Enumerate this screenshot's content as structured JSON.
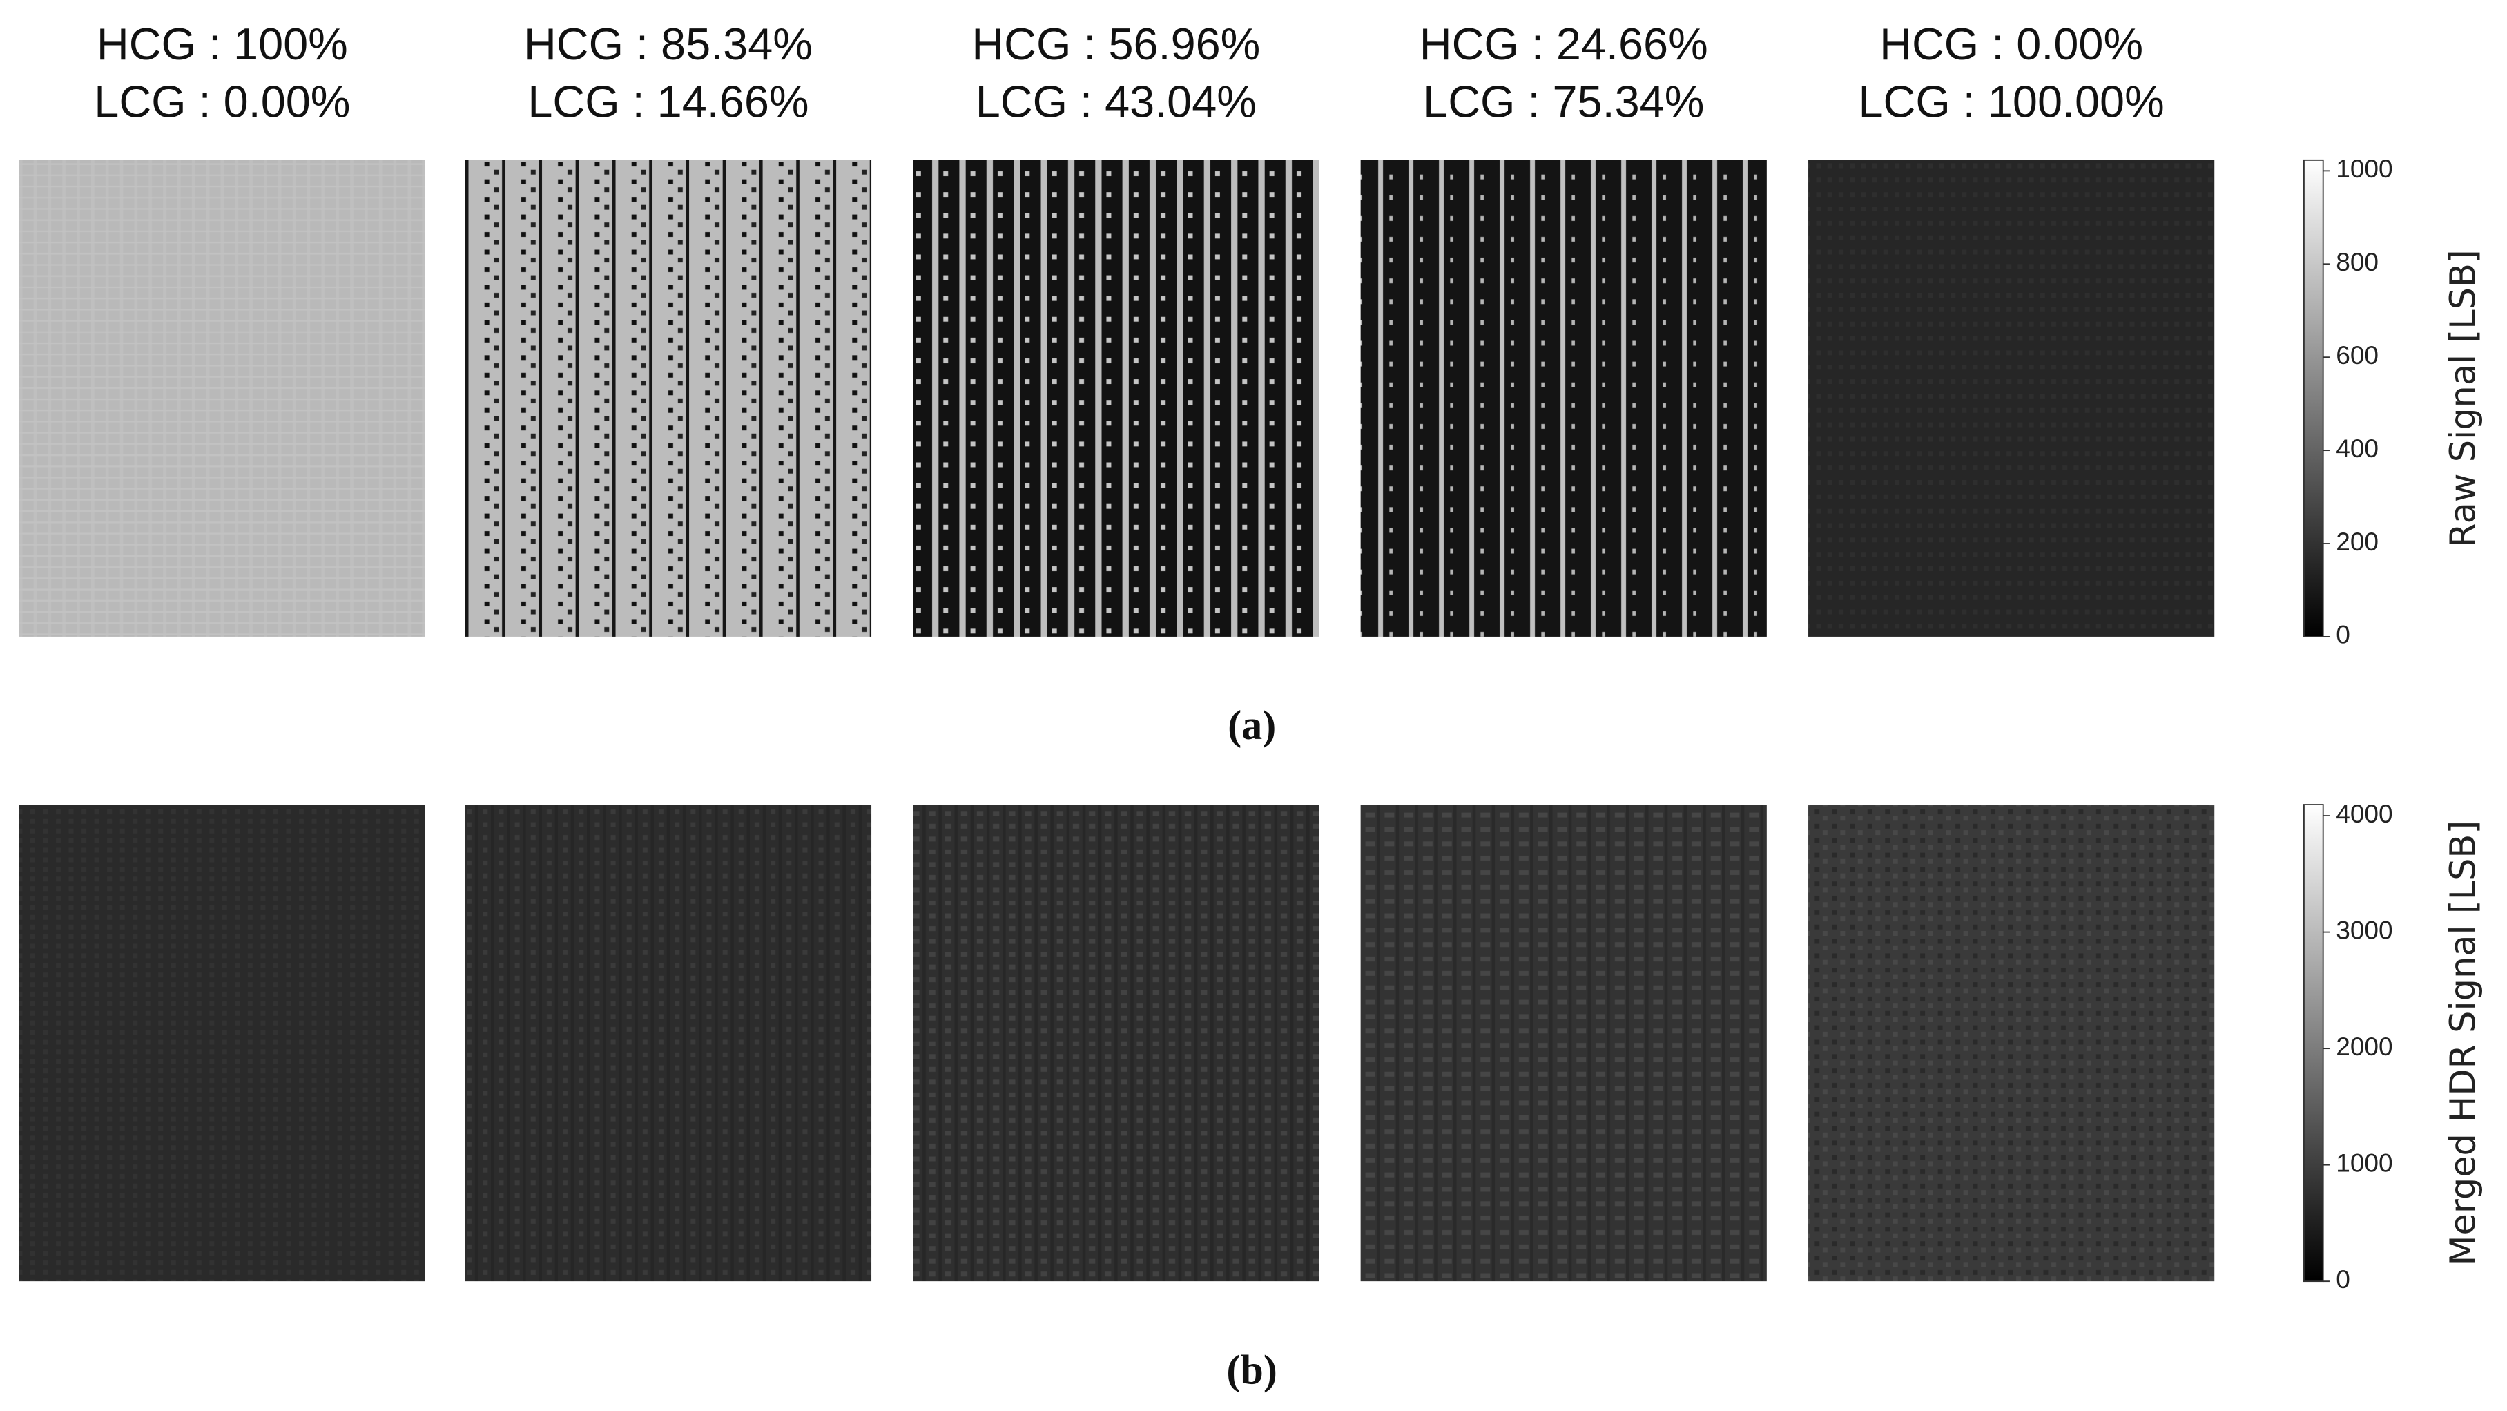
{
  "panels": [
    {
      "hcg": "HCG : 100%",
      "lcg": "LCG : 0.00%"
    },
    {
      "hcg": "HCG : 85.34%",
      "lcg": "LCG : 14.66%"
    },
    {
      "hcg": "HCG : 56.96%",
      "lcg": "LCG : 43.04%"
    },
    {
      "hcg": "HCG : 24.66%",
      "lcg": "LCG : 75.34%"
    },
    {
      "hcg": "HCG : 0.00%",
      "lcg": "LCG : 100.00%"
    }
  ],
  "rows": [
    {
      "caption": "(a)",
      "colorbar": {
        "label": "Raw Signal [LSB]",
        "ylim": [
          0,
          1023
        ],
        "yticks": [
          0,
          200,
          400,
          600,
          800,
          1000
        ]
      }
    },
    {
      "caption": "(b)",
      "colorbar": {
        "label": "Merged HDR Signal [LSB]",
        "ylim": [
          0,
          4095
        ],
        "yticks": [
          0,
          1000,
          2000,
          3000,
          4000
        ]
      }
    }
  ]
}
